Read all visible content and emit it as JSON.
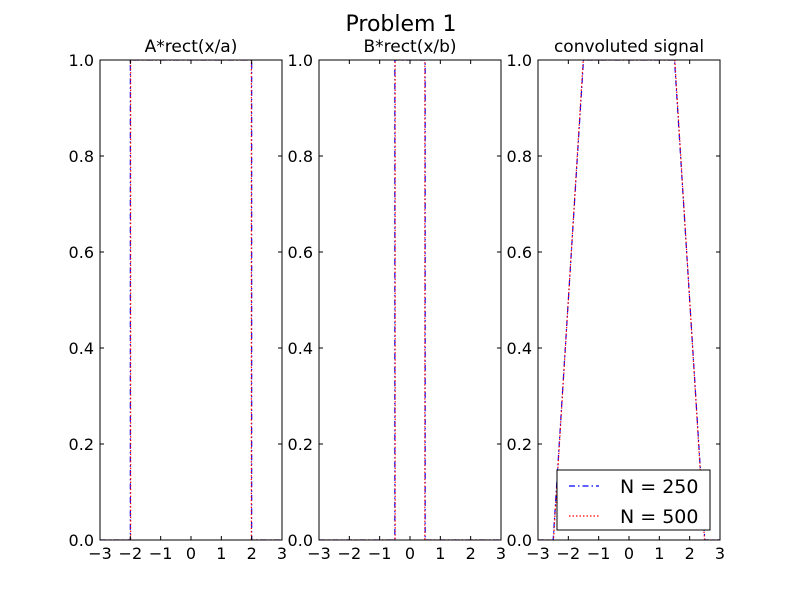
{
  "figure": {
    "title": "Problem 1"
  },
  "colors": {
    "series_n250": "#0000ff",
    "series_n500": "#ff0000",
    "frame": "#000000",
    "background": "#ffffff"
  },
  "chart_data": [
    {
      "type": "line",
      "title": "A*rect(x/a)",
      "xlabel": "",
      "ylabel": "",
      "xlim": [
        -3,
        3
      ],
      "ylim": [
        0,
        1
      ],
      "xticks": [
        -3,
        -2,
        -1,
        0,
        1,
        2,
        3
      ],
      "xtick_labels": [
        "−3",
        "−2",
        "−1",
        "0",
        "1",
        "2",
        "3"
      ],
      "yticks": [
        0,
        0.2,
        0.4,
        0.6,
        0.8,
        1
      ],
      "ytick_labels": [
        "0.0",
        "0.2",
        "0.4",
        "0.6",
        "0.8",
        "1.0"
      ],
      "grid": false,
      "series": [
        {
          "name": "N = 250",
          "style": "dashdot",
          "x": [
            -3,
            -2,
            -2,
            2,
            2,
            3
          ],
          "y": [
            0,
            0,
            1,
            1,
            0,
            0
          ]
        },
        {
          "name": "N = 500",
          "style": "dotted",
          "x": [
            -3,
            -1.99,
            -1.99,
            1.99,
            1.99,
            3
          ],
          "y": [
            0,
            0,
            1,
            1,
            0,
            0
          ]
        }
      ]
    },
    {
      "type": "line",
      "title": "B*rect(x/b)",
      "xlabel": "",
      "ylabel": "",
      "xlim": [
        -3,
        3
      ],
      "ylim": [
        0,
        1
      ],
      "xticks": [
        -3,
        -2,
        -1,
        0,
        1,
        2,
        3
      ],
      "xtick_labels": [
        "−3",
        "−2",
        "−1",
        "0",
        "1",
        "2",
        "3"
      ],
      "yticks": [
        0,
        0.2,
        0.4,
        0.6,
        0.8,
        1
      ],
      "ytick_labels": [
        "0.0",
        "0.2",
        "0.4",
        "0.6",
        "0.8",
        "1.0"
      ],
      "grid": false,
      "series": [
        {
          "name": "N = 250",
          "style": "dashdot",
          "x": [
            -3,
            -0.5,
            -0.5,
            0.5,
            0.5,
            3
          ],
          "y": [
            0,
            0,
            1,
            1,
            0,
            0
          ]
        },
        {
          "name": "N = 500",
          "style": "dotted",
          "x": [
            -3,
            -0.49,
            -0.49,
            0.49,
            0.49,
            3
          ],
          "y": [
            0,
            0,
            1,
            1,
            0,
            0
          ]
        }
      ]
    },
    {
      "type": "line",
      "title": "convoluted signal",
      "xlabel": "",
      "ylabel": "",
      "xlim": [
        -3,
        3
      ],
      "ylim": [
        0,
        1
      ],
      "xticks": [
        -3,
        -2,
        -1,
        0,
        1,
        2,
        3
      ],
      "xtick_labels": [
        "−3",
        "−2",
        "−1",
        "0",
        "1",
        "2",
        "3"
      ],
      "yticks": [
        0,
        0.2,
        0.4,
        0.6,
        0.8,
        1
      ],
      "ytick_labels": [
        "0.0",
        "0.2",
        "0.4",
        "0.6",
        "0.8",
        "1.0"
      ],
      "grid": false,
      "legend": {
        "position": "lower right",
        "entries": [
          "N = 250",
          "N = 500"
        ]
      },
      "series": [
        {
          "name": "N = 250",
          "style": "dashdot",
          "x": [
            -3,
            -2.5,
            -1.5,
            1.5,
            2.5,
            3
          ],
          "y": [
            0,
            0,
            1,
            1,
            0,
            0
          ]
        },
        {
          "name": "N = 500",
          "style": "dotted",
          "x": [
            -3,
            -2.49,
            -1.51,
            1.51,
            2.49,
            3
          ],
          "y": [
            0,
            0,
            1,
            1,
            0,
            0
          ]
        }
      ]
    }
  ]
}
